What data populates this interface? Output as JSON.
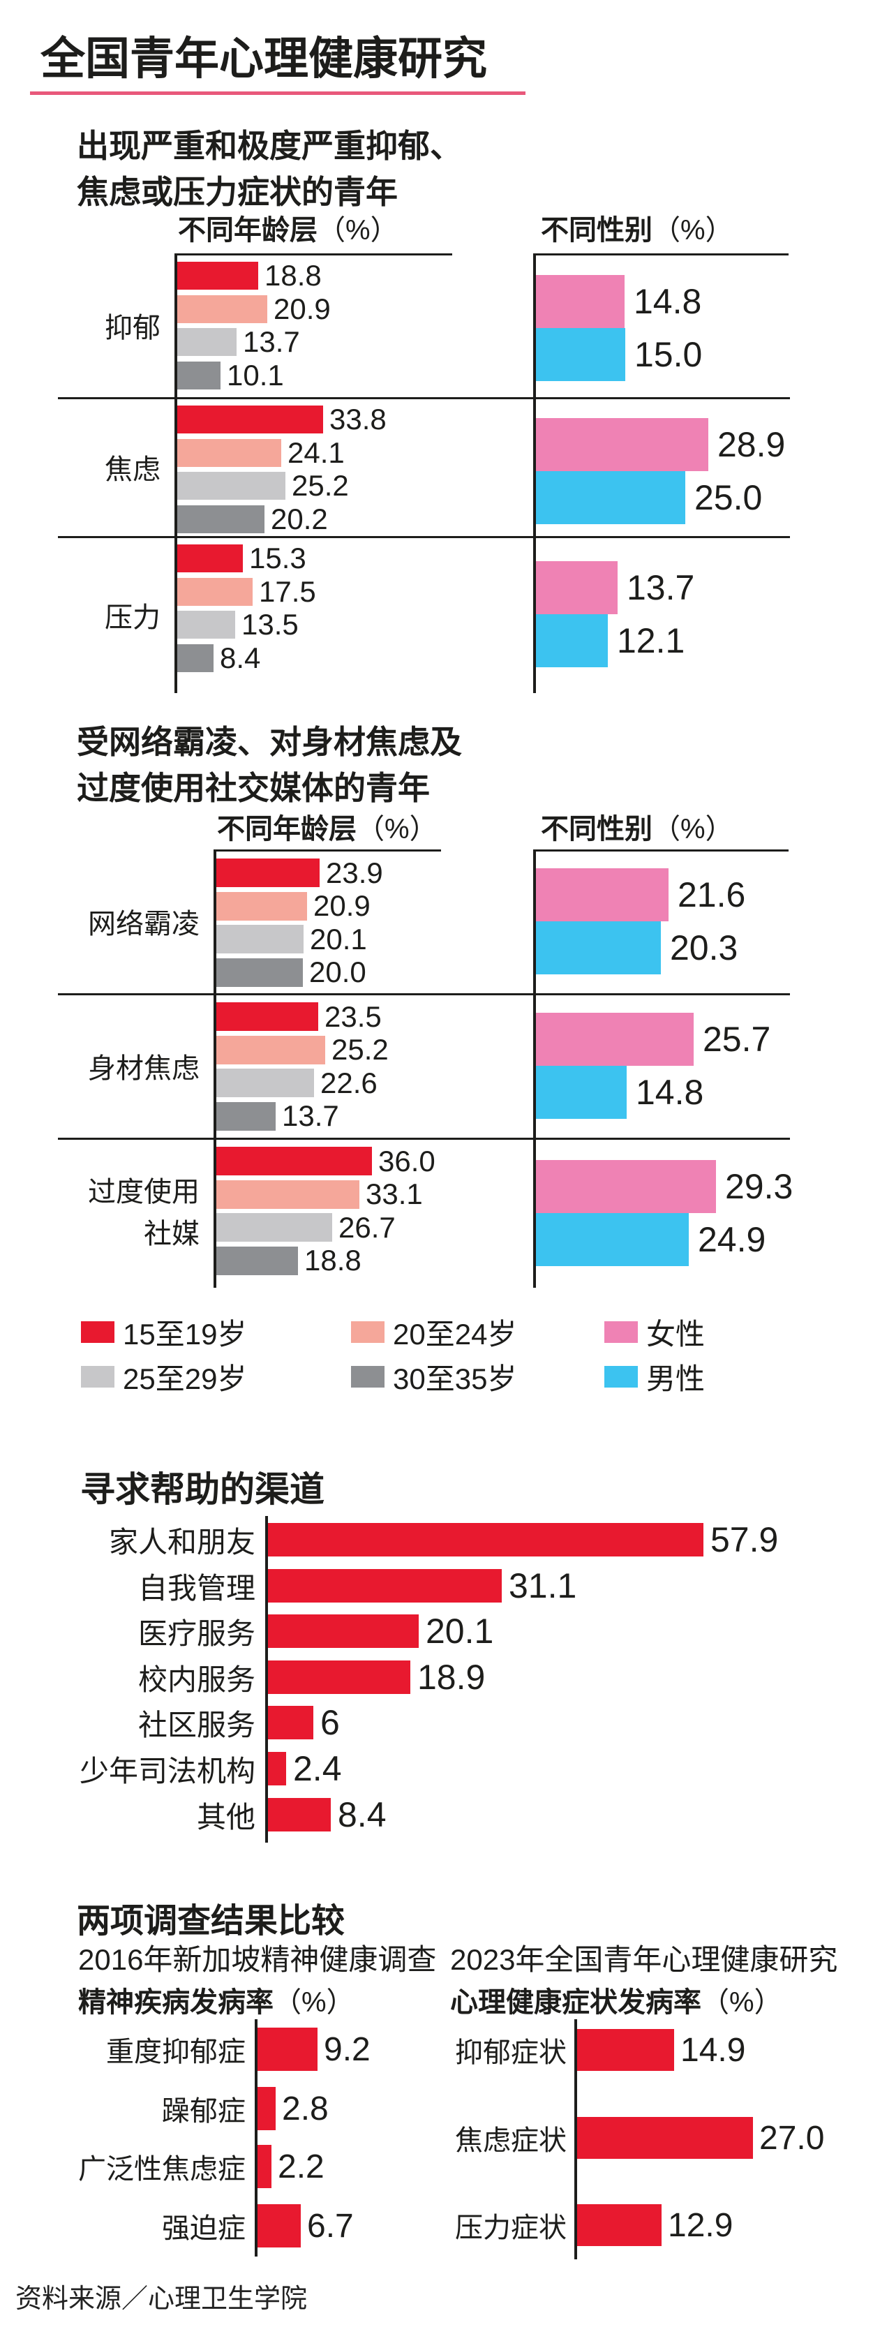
{
  "page_title": "全国青年心理健康研究",
  "source_note": "资料来源／心理卫生学院",
  "colors": {
    "red": "#e8192f",
    "salmon": "#f5a79a",
    "light_gray": "#c7c7c9",
    "dark_gray": "#8d8f92",
    "pink": "#ef82b4",
    "blue": "#3cc3f0",
    "title_underline": "#e8587b",
    "line": "#1d1d1b",
    "text": "#1d1d1b"
  },
  "legend": {
    "rows": [
      [
        {
          "label": "15至19岁",
          "color": "red"
        },
        {
          "label": "20至24岁",
          "color": "salmon"
        },
        {
          "label": "女性",
          "color": "pink"
        }
      ],
      [
        {
          "label": "25至29岁",
          "color": "light_gray"
        },
        {
          "label": "30至35岁",
          "color": "dark_gray"
        },
        {
          "label": "男性",
          "color": "blue"
        }
      ]
    ]
  },
  "chart_data": [
    {
      "type": "bar",
      "title": "出现严重和极度严重抑郁、焦虑或压力症状的青年",
      "title_lines": [
        "出现严重和极度严重抑郁、",
        "焦虑或压力症状的青年"
      ],
      "groups": [
        [
          "抑郁"
        ],
        [
          "焦虑"
        ],
        [
          "压力"
        ]
      ],
      "panels": [
        {
          "header_bold": "不同年龄层",
          "header_unit": "（%）",
          "series": [
            "15至19岁",
            "20至24岁",
            "25至29岁",
            "30至35岁"
          ],
          "series_colors": [
            "red",
            "salmon",
            "light_gray",
            "dark_gray"
          ],
          "values": [
            [
              "18.8",
              "20.9",
              "13.7",
              "10.1"
            ],
            [
              "33.8",
              "24.1",
              "25.2",
              "20.2"
            ],
            [
              "15.3",
              "17.5",
              "13.5",
              "8.4"
            ]
          ]
        },
        {
          "header_bold": "不同性别",
          "header_unit": "（%）",
          "series": [
            "女性",
            "男性"
          ],
          "series_colors": [
            "pink",
            "blue"
          ],
          "values": [
            [
              "14.8",
              "15.0"
            ],
            [
              "28.9",
              "25.0"
            ],
            [
              "13.7",
              "12.1"
            ]
          ]
        }
      ]
    },
    {
      "type": "bar",
      "title": "受网络霸凌、对身材焦虑及过度使用社交媒体的青年",
      "title_lines": [
        "受网络霸凌、对身材焦虑及",
        "过度使用社交媒体的青年"
      ],
      "groups": [
        [
          "网络霸凌"
        ],
        [
          "身材焦虑"
        ],
        [
          "过度使用",
          "社媒"
        ]
      ],
      "panels": [
        {
          "header_bold": "不同年龄层",
          "header_unit": "（%）",
          "series": [
            "15至19岁",
            "20至24岁",
            "25至29岁",
            "30至35岁"
          ],
          "series_colors": [
            "red",
            "salmon",
            "light_gray",
            "dark_gray"
          ],
          "values": [
            [
              "23.9",
              "20.9",
              "20.1",
              "20.0"
            ],
            [
              "23.5",
              "25.2",
              "22.6",
              "13.7"
            ],
            [
              "36.0",
              "33.1",
              "26.7",
              "18.8"
            ]
          ]
        },
        {
          "header_bold": "不同性别",
          "header_unit": "（%）",
          "series": [
            "女性",
            "男性"
          ],
          "series_colors": [
            "pink",
            "blue"
          ],
          "values": [
            [
              "21.6",
              "20.3"
            ],
            [
              "25.7",
              "14.8"
            ],
            [
              "29.3",
              "24.9"
            ]
          ]
        }
      ]
    },
    {
      "type": "bar",
      "title": "寻求帮助的渠道",
      "categories": [
        "家人和朋友",
        "自我管理",
        "医疗服务",
        "校内服务",
        "社区服务",
        "少年司法机构",
        "其他"
      ],
      "values": [
        "57.9",
        "31.1",
        "20.1",
        "18.9",
        "6",
        "2.4",
        "8.4"
      ],
      "bar_color": "red"
    },
    {
      "type": "bar",
      "title": "两项调查结果比较",
      "panels": [
        {
          "subtitle": "2016年新加坡精神健康调查",
          "axis_bold": "精神疾病发病率",
          "axis_unit": "（%）",
          "categories": [
            "重度抑郁症",
            "躁郁症",
            "广泛性焦虑症",
            "强迫症"
          ],
          "values": [
            "9.2",
            "2.8",
            "2.2",
            "6.7"
          ],
          "bar_color": "red"
        },
        {
          "subtitle": "2023年全国青年心理健康研究",
          "axis_bold": "心理健康症状发病率",
          "axis_unit": "（%）",
          "categories": [
            "抑郁症状",
            "焦虑症状",
            "压力症状"
          ],
          "values": [
            "14.9",
            "27.0",
            "12.9"
          ],
          "bar_color": "red"
        }
      ]
    }
  ]
}
